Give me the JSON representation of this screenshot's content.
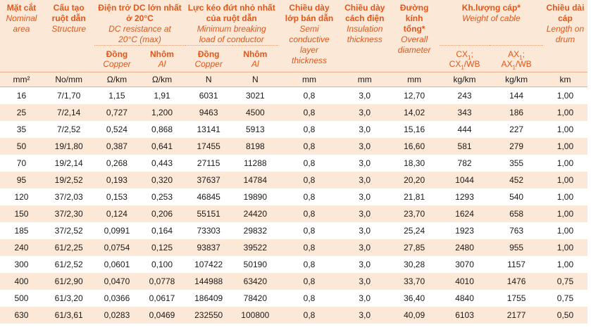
{
  "headers": {
    "area": {
      "vi": "Mặt cắt",
      "en1": "Nominal",
      "en2": "area"
    },
    "structure": {
      "vi1": "Cấu tạo",
      "vi2": "ruột dẫn",
      "en": "Structure"
    },
    "dc_resistance": {
      "vi1": "Điện trở DC lớn nhất",
      "vi2": "ở 20°C",
      "en1": "DC resistance at",
      "en2": "20°C (max)",
      "copper_vi": "Đồng",
      "copper_en": "Copper",
      "al_vi": "Nhôm",
      "al_en": "Al"
    },
    "breaking_load": {
      "vi1": "Lực kéo đứt nhỏ nhất",
      "vi2": "của ruột dẫn",
      "en1": "Minimum breaking",
      "en2": "load of conductor",
      "copper_vi": "Đồng",
      "copper_en": "Copper",
      "al_vi": "Nhôm",
      "al_en": "Al"
    },
    "semi": {
      "vi1": "Chiều dày",
      "vi2": "lớp bán dẫn",
      "en1": "Semi",
      "en2": "conductive",
      "en3": "layer",
      "en4": "thickness"
    },
    "insulation": {
      "vi1": "Chiều dày",
      "vi2": "cách điện",
      "en1": "Insulation",
      "en2": "thickness"
    },
    "diameter": {
      "vi1": "Đường",
      "vi2": "kính",
      "vi3": "tổng*",
      "en1": "Overall",
      "en2": "diameter"
    },
    "weight": {
      "vi": "Kh.lượng cáp*",
      "en": "Weight of cable",
      "cx_a": "CX",
      "cx_b": "CX",
      "cx_suffix": "/WB",
      "ax_a": "AX",
      "ax_b": "AX",
      "ax_suffix": "/WB",
      "sub1": "1",
      "sep": ";"
    },
    "length": {
      "vi1": "Chiều dài",
      "vi2": "cáp",
      "en1": "Length on",
      "en2": "drum"
    }
  },
  "units": [
    "mm²",
    "No/mm",
    "Ω/km",
    "Ω/km",
    "N",
    "N",
    "mm",
    "mm",
    "mm",
    "kg/km",
    "kg/km",
    "km"
  ],
  "rows": [
    [
      "16",
      "7/1,70",
      "1,15",
      "1,91",
      "6031",
      "3021",
      "0,8",
      "3,0",
      "12,70",
      "243",
      "144",
      "1,00"
    ],
    [
      "25",
      "7/2,14",
      "0,727",
      "1,200",
      "9463",
      "4500",
      "0,8",
      "3,0",
      "14,02",
      "343",
      "186",
      "1,00"
    ],
    [
      "35",
      "7/2,52",
      "0,524",
      "0,868",
      "13141",
      "5913",
      "0,8",
      "3,0",
      "15,16",
      "444",
      "227",
      "1,00"
    ],
    [
      "50",
      "19/1,80",
      "0,387",
      "0,641",
      "17455",
      "8198",
      "0,8",
      "3,0",
      "16,60",
      "581",
      "279",
      "1,00"
    ],
    [
      "70",
      "19/2,14",
      "0,268",
      "0,443",
      "27115",
      "11288",
      "0,8",
      "3,0",
      "18,30",
      "782",
      "355",
      "1,00"
    ],
    [
      "95",
      "19/2,52",
      "0,193",
      "0,320",
      "37637",
      "14784",
      "0,8",
      "3,0",
      "20,20",
      "1044",
      "452",
      "1,00"
    ],
    [
      "120",
      "37/2,03",
      "0,153",
      "0,253",
      "46845",
      "19890",
      "0,8",
      "3,0",
      "21,81",
      "1293",
      "540",
      "1,00"
    ],
    [
      "150",
      "37/2,30",
      "0,124",
      "0,206",
      "55151",
      "24420",
      "0,8",
      "3,0",
      "23,70",
      "1624",
      "658",
      "1,00"
    ],
    [
      "185",
      "37/2,52",
      "0,0991",
      "0,164",
      "73303",
      "29832",
      "0,8",
      "3,0",
      "25,24",
      "1923",
      "763",
      "1,00"
    ],
    [
      "240",
      "61/2,25",
      "0,0754",
      "0,125",
      "93837",
      "39522",
      "0,8",
      "3,0",
      "27,85",
      "2480",
      "955",
      "1,00"
    ],
    [
      "300",
      "61/2,52",
      "0,0601",
      "0,100",
      "107422",
      "50190",
      "0,8",
      "3,0",
      "30,28",
      "3070",
      "1157",
      "1,00"
    ],
    [
      "400",
      "61/2,90",
      "0,0470",
      "0,0778",
      "144988",
      "63420",
      "0,8",
      "3,0",
      "33,70",
      "4010",
      "1476",
      "0,75"
    ],
    [
      "500",
      "61/3,20",
      "0,0366",
      "0,0617",
      "186409",
      "78420",
      "0,8",
      "3,0",
      "36,40",
      "4840",
      "1755",
      "0,75"
    ],
    [
      "630",
      "61/3,61",
      "0,0283",
      "0,0469",
      "232550",
      "100800",
      "0,8",
      "3,0",
      "40,09",
      "6103",
      "2177",
      "0,50"
    ]
  ],
  "colors": {
    "header_bg": "#fce8d6",
    "header_text": "#e0561a",
    "stripe": "#fce8d6",
    "rule": "#e7b08e"
  }
}
